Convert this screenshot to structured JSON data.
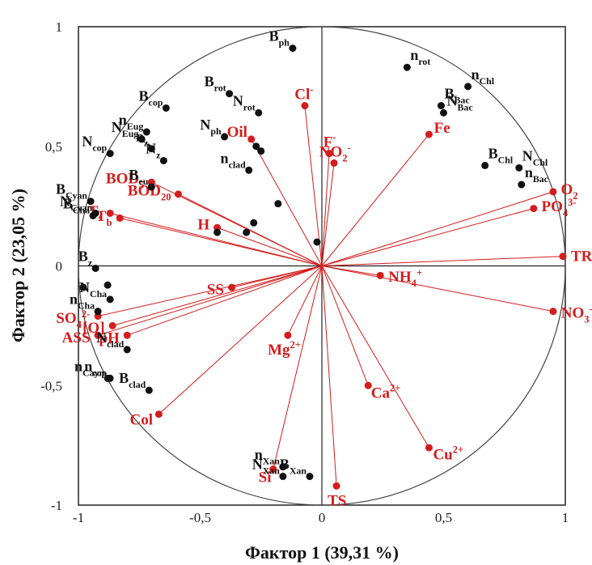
{
  "chart_data": {
    "type": "scatter",
    "title": "",
    "xlabel": "Фактор 1 (39,31 %)",
    "ylabel": "Фактор 2 (23,05 %)",
    "xlim": [
      -1,
      1
    ],
    "ylim": [
      -1,
      1
    ],
    "xticks": [
      "-1",
      "-0,5",
      "0",
      "0,5",
      "1"
    ],
    "yticks": [
      "1",
      "0,5",
      "0",
      "-0,5",
      "-1"
    ],
    "grid": false,
    "unit_circle": true,
    "colors": {
      "environment": "#d41c1c",
      "biota": "#111111"
    },
    "vectors": [
      {
        "x": 0.99,
        "y": 0.04,
        "label": "TR",
        "sup": "",
        "sub": ""
      },
      {
        "x": 0.95,
        "y": 0.31,
        "label": "O",
        "sup": "",
        "sub": "2"
      },
      {
        "x": 0.87,
        "y": 0.24,
        "label": "PO",
        "sup": "3-",
        "sub": "4"
      },
      {
        "x": 0.95,
        "y": -0.19,
        "label": "NO",
        "sup": "-",
        "sub": "3"
      },
      {
        "x": 0.44,
        "y": 0.55,
        "label": "Fe",
        "sup": "",
        "sub": ""
      },
      {
        "x": 0.24,
        "y": -0.04,
        "label": "NH",
        "sup": "+",
        "sub": "4"
      },
      {
        "x": 0.19,
        "y": -0.5,
        "label": "Ca",
        "sup": "2+",
        "sub": ""
      },
      {
        "x": 0.44,
        "y": -0.76,
        "label": "Cu",
        "sup": "2+",
        "sub": ""
      },
      {
        "x": 0.06,
        "y": -0.92,
        "label": "TS",
        "sup": "",
        "sub": ""
      },
      {
        "x": -0.2,
        "y": -0.85,
        "label": "Si",
        "sup": "",
        "sub": ""
      },
      {
        "x": -0.14,
        "y": -0.29,
        "label": "Mg",
        "sup": "2+",
        "sub": ""
      },
      {
        "x": -0.07,
        "y": 0.67,
        "label": "Cl",
        "sup": "-",
        "sub": ""
      },
      {
        "x": 0.03,
        "y": 0.47,
        "label": "F",
        "sup": "-",
        "sub": ""
      },
      {
        "x": 0.05,
        "y": 0.43,
        "label": "NO",
        "sup": "-",
        "sub": "2"
      },
      {
        "x": -0.29,
        "y": 0.53,
        "label": "Oil",
        "sup": "",
        "sub": ""
      },
      {
        "x": -0.7,
        "y": 0.35,
        "label": "BOD",
        "sup": "",
        "sub": "5"
      },
      {
        "x": -0.59,
        "y": 0.3,
        "label": "BOD",
        "sup": "",
        "sub": "20"
      },
      {
        "x": -0.87,
        "y": 0.22,
        "label": "T",
        "sup": "",
        "sub": "s"
      },
      {
        "x": -0.83,
        "y": 0.2,
        "label": "T",
        "sup": "",
        "sub": "b"
      },
      {
        "x": -0.43,
        "y": 0.16,
        "label": "H",
        "sup": "",
        "sub": ""
      },
      {
        "x": -0.37,
        "y": -0.09,
        "label": "SS",
        "sup": "",
        "sub": ""
      },
      {
        "x": -0.86,
        "y": -0.25,
        "label": "[O]",
        "sup": "",
        "sub": ""
      },
      {
        "x": -0.92,
        "y": -0.21,
        "label": "SO",
        "sup": "2-",
        "sub": "4"
      },
      {
        "x": -0.92,
        "y": -0.29,
        "label": "ASS",
        "sup": "",
        "sub": ""
      },
      {
        "x": -0.8,
        "y": -0.29,
        "label": "pH",
        "sup": "",
        "sub": ""
      },
      {
        "x": -0.67,
        "y": -0.62,
        "label": "Col",
        "sup": "",
        "sub": ""
      }
    ],
    "points": [
      {
        "x": -0.12,
        "y": 0.91,
        "label": "B",
        "sub": "ph"
      },
      {
        "x": -0.38,
        "y": 0.72,
        "label": "B",
        "sub": "rot"
      },
      {
        "x": -0.64,
        "y": 0.66,
        "label": "B",
        "sub": "cop"
      },
      {
        "x": -0.26,
        "y": 0.64,
        "label": "N",
        "sub": "rot"
      },
      {
        "x": -0.72,
        "y": 0.56,
        "label": "n",
        "sub": "Eug"
      },
      {
        "x": -0.74,
        "y": 0.53,
        "label": "N",
        "sub": "Eug"
      },
      {
        "x": -0.7,
        "y": 0.49,
        "label": "n",
        "sub": "z"
      },
      {
        "x": -0.4,
        "y": 0.54,
        "label": "N",
        "sub": "ph"
      },
      {
        "x": -0.87,
        "y": 0.47,
        "label": "N",
        "sub": "cop"
      },
      {
        "x": -0.65,
        "y": 0.44,
        "label": "N",
        "sub": "z"
      },
      {
        "x": -0.7,
        "y": 0.33,
        "label": "B",
        "sub": "eu"
      },
      {
        "x": -0.3,
        "y": 0.4,
        "label": "n",
        "sub": "clad"
      },
      {
        "x": -0.27,
        "y": 0.5,
        "label": "",
        "sub": ""
      },
      {
        "x": -0.25,
        "y": 0.48,
        "label": "",
        "sub": ""
      },
      {
        "x": -0.18,
        "y": 0.26,
        "label": "",
        "sub": ""
      },
      {
        "x": -0.28,
        "y": 0.18,
        "label": "",
        "sub": ""
      },
      {
        "x": -0.31,
        "y": 0.14,
        "label": "",
        "sub": ""
      },
      {
        "x": -0.43,
        "y": 0.14,
        "label": "",
        "sub": ""
      },
      {
        "x": -0.02,
        "y": 0.1,
        "label": "",
        "sub": ""
      },
      {
        "x": -0.95,
        "y": 0.27,
        "label": "B",
        "sub": "Cyan"
      },
      {
        "x": -0.93,
        "y": 0.22,
        "label": "N",
        "sub": "Cyan"
      },
      {
        "x": -0.94,
        "y": 0.21,
        "label": "B",
        "sub": "Cha"
      },
      {
        "x": -0.93,
        "y": -0.01,
        "label": "B",
        "sub": "z"
      },
      {
        "x": -0.98,
        "y": -0.09,
        "label": "",
        "sub": ""
      },
      {
        "x": -0.88,
        "y": -0.08,
        "label": "",
        "sub": ""
      },
      {
        "x": -0.87,
        "y": -0.14,
        "label": "N",
        "sub": "Cha"
      },
      {
        "x": -0.92,
        "y": -0.19,
        "label": "n",
        "sub": "Cha"
      },
      {
        "x": -0.8,
        "y": -0.35,
        "label": "N",
        "sub": "clad"
      },
      {
        "x": -0.87,
        "y": -0.47,
        "label": "n",
        "sub": "cop"
      },
      {
        "x": -0.88,
        "y": -0.47,
        "label": "n",
        "sub": "Cayn"
      },
      {
        "x": -0.71,
        "y": -0.52,
        "label": "B",
        "sub": "clad"
      },
      {
        "x": 0.35,
        "y": 0.83,
        "label": "n",
        "sub": "rot"
      },
      {
        "x": 0.6,
        "y": 0.75,
        "label": "n",
        "sub": "Chl"
      },
      {
        "x": 0.49,
        "y": 0.67,
        "label": "B",
        "sub": "Bac"
      },
      {
        "x": 0.5,
        "y": 0.64,
        "label": "N",
        "sub": "Bac"
      },
      {
        "x": 0.67,
        "y": 0.42,
        "label": "B",
        "sub": "Chl"
      },
      {
        "x": 0.81,
        "y": 0.41,
        "label": "N",
        "sub": "Chl"
      },
      {
        "x": 0.82,
        "y": 0.34,
        "label": "n",
        "sub": "Bac"
      },
      {
        "x": -0.16,
        "y": -0.84,
        "label": "n",
        "sub": "Xan"
      },
      {
        "x": -0.16,
        "y": -0.88,
        "label": "N",
        "sub": "Xan"
      },
      {
        "x": -0.05,
        "y": -0.88,
        "label": "B",
        "sub": "Xan"
      }
    ]
  }
}
